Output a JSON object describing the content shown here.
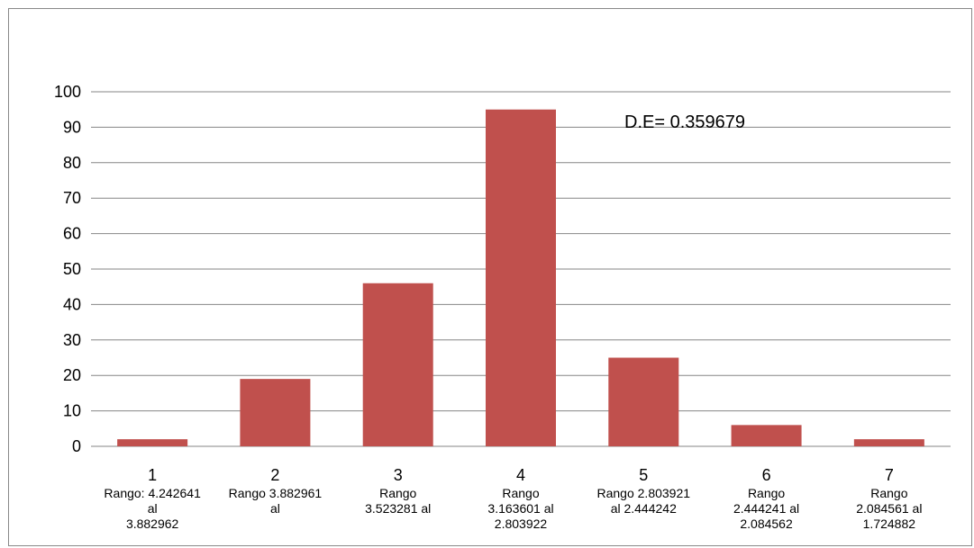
{
  "chart_data": {
    "type": "bar",
    "title": "",
    "xlabel": "",
    "ylabel": "",
    "ylim": [
      0,
      100
    ],
    "yticks": [
      0,
      10,
      20,
      30,
      40,
      50,
      60,
      70,
      80,
      90,
      100
    ],
    "grid": true,
    "legend": "none",
    "bar_color": "#c0504d",
    "categories": [
      "1",
      "2",
      "3",
      "4",
      "5",
      "6",
      "7"
    ],
    "category_descriptions": [
      [
        "Rango: 4.242641",
        "al",
        "3.882962"
      ],
      [
        "Rango 3.882961",
        "al"
      ],
      [
        "Rango",
        "3.523281 al"
      ],
      [
        "Rango",
        "3.163601 al",
        "2.803922"
      ],
      [
        "Rango 2.803921",
        "al 2.444242"
      ],
      [
        "Rango",
        "2.444241 al",
        "2.084562"
      ],
      [
        "Rango",
        "2.084561 al",
        "1.724882"
      ]
    ],
    "values": [
      2,
      19,
      46,
      95,
      25,
      6,
      2
    ],
    "annotation": "D.E= 0.359679"
  }
}
